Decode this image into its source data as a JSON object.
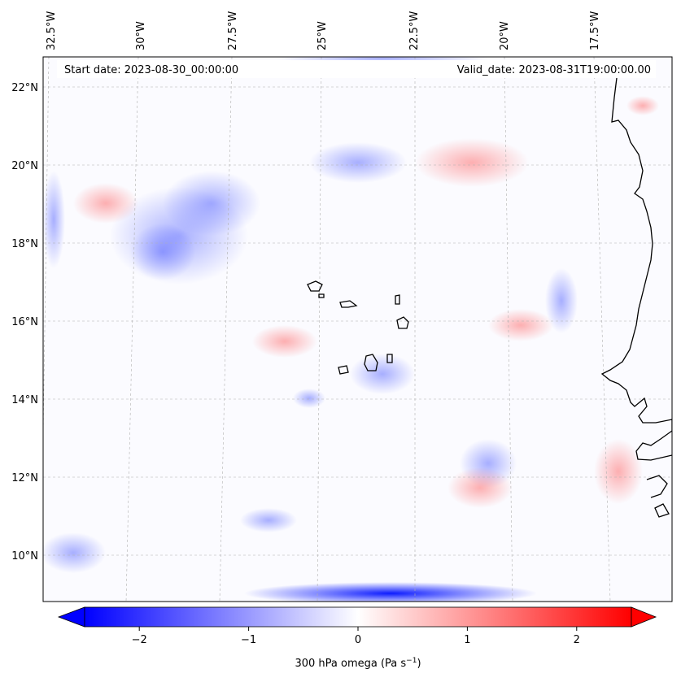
{
  "header": {
    "start_date": "Start date: 2023-08-30_00:00:00",
    "valid_date": "Valid_date: 2023-08-31T19:00:00.00"
  },
  "axes": {
    "longitude_labels": [
      "32.5°W",
      "30°W",
      "27.5°W",
      "25°W",
      "22.5°W",
      "20°W",
      "17.5°W"
    ],
    "latitude_labels": [
      "22°N",
      "20°N",
      "18°N",
      "16°N",
      "14°N",
      "12°N",
      "10°N"
    ]
  },
  "colorbar": {
    "label_main": "300 hPa omega (Pa s",
    "label_sup": "−1",
    "label_end": ")",
    "ticks": [
      "−2",
      "−1",
      "0",
      "1",
      "2"
    ],
    "tick_values": [
      -2,
      -1,
      0,
      1,
      2
    ],
    "range": [
      -2.5,
      2.5
    ],
    "colors": {
      "min": "#0000ff",
      "mid": "#ffffff",
      "max": "#ff0000"
    },
    "extend": "both"
  },
  "colors": {
    "coastline": "#000000",
    "gridline": "#b0b0b0"
  }
}
